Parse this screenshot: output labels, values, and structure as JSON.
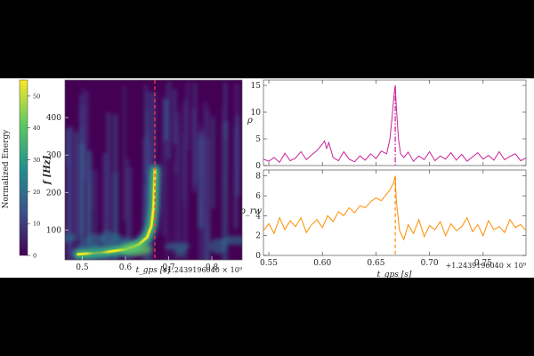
{
  "figure": {
    "background": "#000000",
    "panel_background": "#ffffff",
    "colors": {
      "snr": "#c8229a",
      "chi_weighted": "#ff8c00",
      "marker_left": "#ff4040"
    },
    "gps_offset_label": "+1.2439196040 × 10⁹"
  },
  "chart_data": [
    {
      "type": "heatmap",
      "title": "",
      "colormap": "viridis",
      "colorbar": {
        "label": "Normalized Energy",
        "range": [
          0,
          55
        ],
        "ticks": [
          "0",
          "10",
          "20",
          "30",
          "40",
          "50"
        ]
      },
      "xlabel": "t_gps [s]",
      "xlim": [
        0.46,
        0.87
      ],
      "x_ticks": [
        "0.5",
        "0.6",
        "0.7",
        "0.8"
      ],
      "ylabel": "f [Hz]",
      "ylim": [
        20,
        500
      ],
      "y_ticks": [
        "100",
        "200",
        "300",
        "400"
      ],
      "event_time": 0.668,
      "chirp_track": {
        "t": [
          0.49,
          0.55,
          0.6,
          0.63,
          0.65,
          0.66,
          0.665,
          0.668
        ],
        "f": [
          35,
          40,
          48,
          60,
          80,
          110,
          160,
          260
        ]
      },
      "peak_energy": 55
    },
    {
      "type": "line",
      "title": "",
      "ylabel": "ρ",
      "xlim": [
        0.545,
        0.79
      ],
      "ylim": [
        0,
        16
      ],
      "y_ticks": [
        "0",
        "5",
        "10",
        "15"
      ],
      "x_ticks": [
        "0.55",
        "0.60",
        "0.65",
        "0.70",
        "0.75"
      ],
      "event_time": 0.668,
      "series": [
        {
          "x": [
            0.545,
            0.55,
            0.555,
            0.56,
            0.565,
            0.57,
            0.575,
            0.58,
            0.585,
            0.59,
            0.595,
            0.6,
            0.602,
            0.604,
            0.606,
            0.61,
            0.615,
            0.62,
            0.625,
            0.63,
            0.635,
            0.64,
            0.645,
            0.65,
            0.655,
            0.66,
            0.663,
            0.665,
            0.667,
            0.668,
            0.669,
            0.671,
            0.673,
            0.676,
            0.68,
            0.685,
            0.69,
            0.695,
            0.7,
            0.705,
            0.71,
            0.715,
            0.72,
            0.725,
            0.73,
            0.735,
            0.74,
            0.745,
            0.75,
            0.755,
            0.76,
            0.765,
            0.77,
            0.775,
            0.78,
            0.785,
            0.79
          ],
          "y": [
            1.2,
            0.8,
            1.5,
            0.6,
            2.3,
            0.9,
            1.4,
            2.6,
            1.1,
            2.0,
            2.8,
            4.0,
            4.6,
            3.2,
            4.3,
            1.5,
            0.9,
            2.6,
            1.2,
            0.7,
            1.8,
            1.0,
            2.2,
            1.3,
            2.7,
            2.2,
            5.0,
            9.0,
            13.5,
            15.0,
            11.0,
            5.0,
            2.2,
            1.5,
            2.5,
            0.8,
            1.8,
            1.1,
            2.6,
            0.9,
            1.8,
            1.2,
            2.4,
            1.0,
            2.1,
            0.8,
            1.6,
            2.4,
            1.2,
            1.9,
            1.0,
            2.6,
            1.1,
            1.7,
            2.2,
            0.9,
            1.4
          ]
        }
      ]
    },
    {
      "type": "line",
      "title": "",
      "ylabel": "ρ_rw",
      "xlabel": "t_gps [s]",
      "xlim": [
        0.545,
        0.79
      ],
      "ylim": [
        0,
        8.6
      ],
      "y_ticks": [
        "0",
        "2",
        "4",
        "6",
        "8"
      ],
      "x_ticks": [
        "0.55",
        "0.60",
        "0.65",
        "0.70",
        "0.75"
      ],
      "event_time": 0.668,
      "series": [
        {
          "x": [
            0.545,
            0.55,
            0.555,
            0.56,
            0.565,
            0.57,
            0.575,
            0.58,
            0.585,
            0.59,
            0.595,
            0.6,
            0.605,
            0.61,
            0.615,
            0.62,
            0.625,
            0.63,
            0.635,
            0.64,
            0.645,
            0.65,
            0.655,
            0.66,
            0.663,
            0.666,
            0.668,
            0.669,
            0.672,
            0.676,
            0.68,
            0.685,
            0.69,
            0.695,
            0.7,
            0.705,
            0.71,
            0.715,
            0.72,
            0.725,
            0.73,
            0.735,
            0.74,
            0.745,
            0.75,
            0.755,
            0.76,
            0.765,
            0.77,
            0.775,
            0.78,
            0.785,
            0.79
          ],
          "y": [
            2.5,
            3.2,
            2.2,
            3.8,
            2.6,
            3.5,
            2.9,
            3.8,
            2.3,
            3.1,
            3.6,
            2.8,
            4.0,
            3.4,
            4.4,
            4.0,
            4.8,
            4.3,
            5.0,
            4.8,
            5.4,
            5.8,
            5.5,
            6.2,
            6.6,
            7.2,
            8.0,
            5.5,
            2.5,
            1.6,
            3.1,
            2.2,
            3.6,
            1.9,
            3.0,
            2.6,
            3.4,
            2.0,
            3.2,
            2.5,
            2.9,
            3.8,
            2.4,
            3.1,
            2.0,
            3.5,
            2.6,
            2.9,
            2.3,
            3.6,
            2.8,
            3.1,
            2.5
          ]
        }
      ]
    }
  ]
}
